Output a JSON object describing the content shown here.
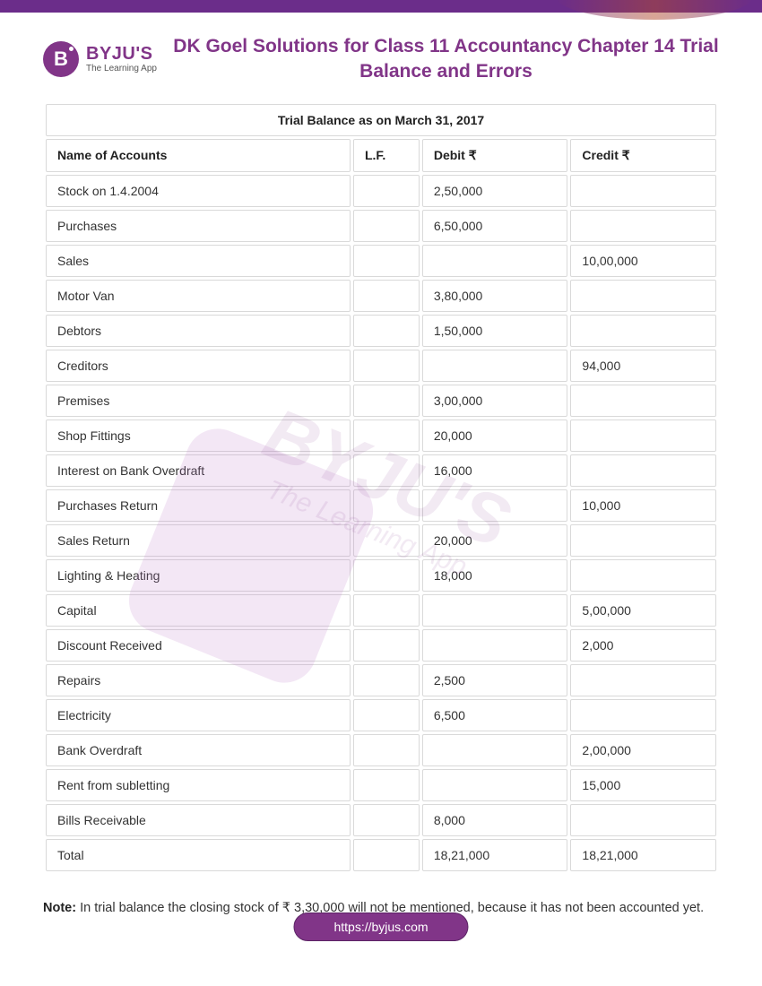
{
  "brand": {
    "name": "BYJU'S",
    "tagline": "The Learning App",
    "mark_letter": "B"
  },
  "title": "DK Goel Solutions for Class 11 Accountancy Chapter 14 Trial Balance and Errors",
  "table": {
    "caption": "Trial Balance as on March 31, 2017",
    "columns": [
      "Name of Accounts",
      "L.F.",
      "Debit ₹",
      "Credit ₹"
    ],
    "rows": [
      {
        "name": "Stock on 1.4.2004",
        "lf": "",
        "debit": "2,50,000",
        "credit": ""
      },
      {
        "name": "Purchases",
        "lf": "",
        "debit": "6,50,000",
        "credit": ""
      },
      {
        "name": "Sales",
        "lf": "",
        "debit": "",
        "credit": "10,00,000"
      },
      {
        "name": "Motor Van",
        "lf": "",
        "debit": "3,80,000",
        "credit": ""
      },
      {
        "name": "Debtors",
        "lf": "",
        "debit": "1,50,000",
        "credit": ""
      },
      {
        "name": "Creditors",
        "lf": "",
        "debit": "",
        "credit": "94,000"
      },
      {
        "name": "Premises",
        "lf": "",
        "debit": "3,00,000",
        "credit": ""
      },
      {
        "name": "Shop Fittings",
        "lf": "",
        "debit": "20,000",
        "credit": ""
      },
      {
        "name": "Interest on Bank Overdraft",
        "lf": "",
        "debit": "16,000",
        "credit": ""
      },
      {
        "name": "Purchases Return",
        "lf": "",
        "debit": "",
        "credit": "10,000"
      },
      {
        "name": "Sales Return",
        "lf": "",
        "debit": "20,000",
        "credit": ""
      },
      {
        "name": "Lighting & Heating",
        "lf": "",
        "debit": "18,000",
        "credit": ""
      },
      {
        "name": "Capital",
        "lf": "",
        "debit": "",
        "credit": "5,00,000"
      },
      {
        "name": "Discount Received",
        "lf": "",
        "debit": "",
        "credit": "2,000"
      },
      {
        "name": "Repairs",
        "lf": "",
        "debit": "2,500",
        "credit": ""
      },
      {
        "name": "Electricity",
        "lf": "",
        "debit": "6,500",
        "credit": ""
      },
      {
        "name": "Bank Overdraft",
        "lf": "",
        "debit": "",
        "credit": "2,00,000"
      },
      {
        "name": "Rent from subletting",
        "lf": "",
        "debit": "",
        "credit": "15,000"
      },
      {
        "name": "Bills Receivable",
        "lf": "",
        "debit": "8,000",
        "credit": ""
      },
      {
        "name": "Total",
        "lf": "",
        "debit": "18,21,000",
        "credit": "18,21,000"
      }
    ]
  },
  "note": {
    "label": "Note:",
    "text": " In trial balance the closing stock of ₹ 3,30,000 will not be mentioned, because it has not been accounted yet."
  },
  "footer_url": "https://byjus.com",
  "watermark": {
    "main": "BYJU'S",
    "sub": "The Learning App"
  },
  "colors": {
    "brand": "#813588",
    "border": "#d9d9d9",
    "text": "#333333"
  }
}
